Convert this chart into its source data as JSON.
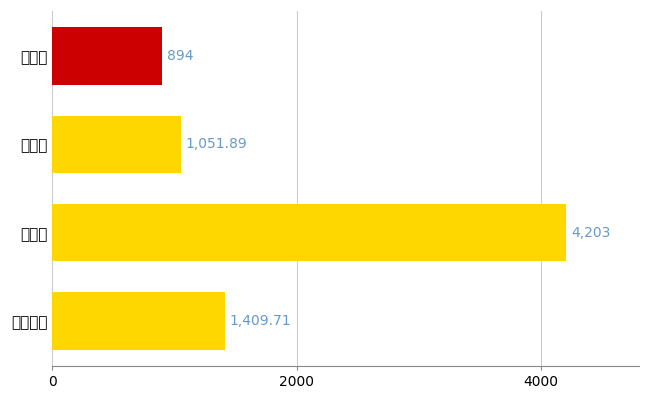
{
  "categories": [
    "全国平均",
    "県最大",
    "県平均",
    "常総市"
  ],
  "values": [
    1409.71,
    4203,
    1051.89,
    894
  ],
  "bar_colors": [
    "#FFD700",
    "#FFD700",
    "#FFD700",
    "#CC0000"
  ],
  "value_labels": [
    "1,409.71",
    "4,203",
    "1,051.89",
    "894"
  ],
  "label_color": "#6699CC",
  "xlim": [
    0,
    4800
  ],
  "xticks": [
    0,
    2000,
    4000
  ],
  "background_color": "#FFFFFF",
  "grid_color": "#CCCCCC",
  "bar_height": 0.65,
  "figsize": [
    6.5,
    4.0
  ],
  "dpi": 100,
  "label_fontsize": 10,
  "tick_fontsize": 10,
  "ylabel_fontsize": 11
}
